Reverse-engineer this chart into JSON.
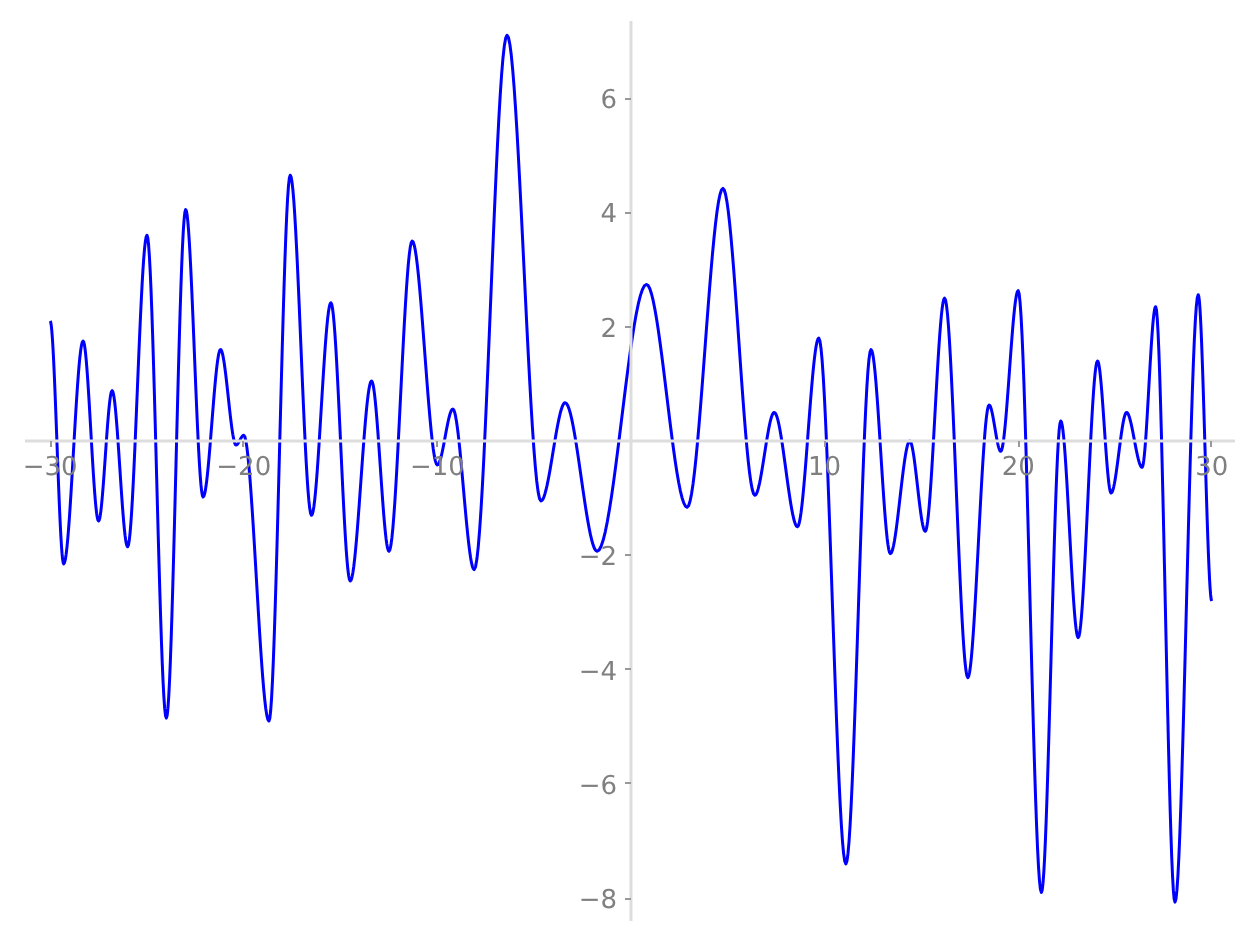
{
  "chart_data": {
    "type": "line",
    "x": [
      -30,
      -29.3,
      -28.3,
      -27.5,
      -26.8,
      -26.0,
      -25.0,
      -24.0,
      -23.0,
      -22.1,
      -21.2,
      -20.4,
      -20.0,
      -18.7,
      -17.6,
      -16.5,
      -15.5,
      -14.5,
      -13.4,
      -12.5,
      -11.3,
      -10.0,
      -9.2,
      -8.1,
      -6.4,
      -4.65,
      -3.4,
      -1.75,
      0.8,
      2.9,
      4.75,
      6.4,
      7.4,
      8.6,
      9.7,
      11.1,
      12.4,
      13.4,
      14.4,
      15.2,
      16.2,
      17.4,
      18.5,
      19.1,
      20.0,
      21.2,
      22.2,
      23.1,
      24.1,
      24.8,
      25.6,
      26.4,
      27.1,
      28.1,
      29.3,
      30
    ],
    "series": [
      {
        "color": "#0000ff",
        "values": [
          2.1,
          -2.15,
          1.75,
          -1.4,
          0.88,
          -1.85,
          3.6,
          -4.85,
          4.05,
          -0.98,
          1.6,
          -0.07,
          0.1,
          -4.9,
          4.65,
          -1.3,
          2.42,
          -2.45,
          1.05,
          -1.93,
          3.5,
          -0.42,
          0.56,
          -2.25,
          7.1,
          -1.05,
          0.67,
          -1.93,
          2.74,
          -1.16,
          4.42,
          -0.95,
          0.5,
          -1.5,
          1.8,
          -7.4,
          1.6,
          -1.97,
          0.0,
          -1.58,
          2.5,
          -4.14,
          0.63,
          -0.18,
          2.63,
          -7.9,
          0.35,
          -3.44,
          1.4,
          -0.91,
          0.5,
          -0.46,
          2.35,
          -8.07,
          2.56,
          -2.8
        ]
      }
    ],
    "xlim": [
      -31.3,
      31.2
    ],
    "ylim": [
      -8.4,
      7.35
    ],
    "xticks": [
      {
        "value": -30,
        "label": "−30"
      },
      {
        "value": -20,
        "label": "−20"
      },
      {
        "value": -10,
        "label": "−10"
      },
      10,
      20,
      30
    ],
    "yticks": [
      {
        "value": -8,
        "label": "−8"
      },
      {
        "value": -6,
        "label": "−6"
      },
      {
        "value": -4,
        "label": "−4"
      },
      {
        "value": -2,
        "label": "−2"
      },
      2,
      4,
      6
    ],
    "grid": false
  }
}
